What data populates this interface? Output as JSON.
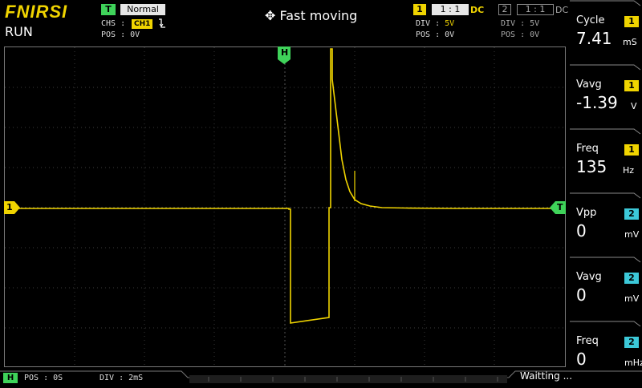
{
  "brand": "FNIRSI",
  "run_state": "RUN",
  "trigger": {
    "badge": "T",
    "mode": "Normal",
    "source_label": "CHS :",
    "source": "CH1",
    "pos_label": "POS : 0V",
    "edge_icon": "falling-edge-icon"
  },
  "mode_label": "Fast moving",
  "ch1": {
    "num": "1",
    "probe": "1 : 1",
    "coupling": "DC",
    "div_label": "DIV :",
    "div": "5V",
    "pos_label": "POS : 0V",
    "color": "#f0d400"
  },
  "ch2": {
    "num": "2",
    "probe": "1 : 1",
    "coupling": "DC",
    "div_label": "DIV :",
    "div": "5V",
    "pos_label": "POS : 0V",
    "color": "#3cc8d8"
  },
  "markers": {
    "h": "H",
    "ch1": "1",
    "trig": "T"
  },
  "measurements": [
    {
      "label": "Cycle",
      "channel": "1",
      "value": "7.41",
      "unit": "mS"
    },
    {
      "label": "Vavg",
      "channel": "1",
      "value": "-1.39",
      "unit": "V"
    },
    {
      "label": "Freq",
      "channel": "1",
      "value": "135",
      "unit": "Hz"
    },
    {
      "label": "Vpp",
      "channel": "2",
      "value": "0",
      "unit": "mV"
    },
    {
      "label": "Vavg",
      "channel": "2",
      "value": "0",
      "unit": "mV"
    },
    {
      "label": "Freq",
      "channel": "2",
      "value": "0",
      "unit": "mHz"
    }
  ],
  "timebase": {
    "badge": "H",
    "pos": "POS : 0S",
    "div": "DIV : 2mS"
  },
  "status": "Waitting ..."
}
